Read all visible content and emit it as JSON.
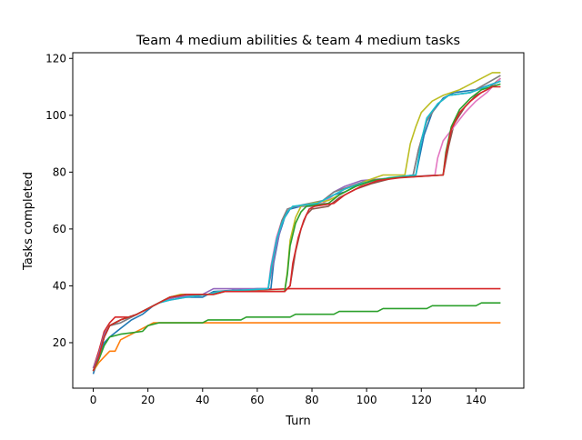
{
  "chart_data": {
    "type": "line",
    "title": "Team 4 medium abilities & team 4 medium tasks",
    "xlabel": "Turn",
    "ylabel": "Tasks completed",
    "xlim": [
      -7.5,
      157.5
    ],
    "ylim": [
      4,
      122
    ],
    "xticks": [
      0,
      20,
      40,
      60,
      80,
      100,
      120,
      140
    ],
    "yticks": [
      20,
      40,
      60,
      80,
      100,
      120
    ],
    "grid": false,
    "legend": "none",
    "series": [
      {
        "color": "#1f77b4",
        "points": [
          [
            0,
            9
          ],
          [
            2,
            15
          ],
          [
            4,
            20
          ],
          [
            6,
            22
          ],
          [
            10,
            25
          ],
          [
            14,
            28
          ],
          [
            18,
            30
          ],
          [
            22,
            33
          ],
          [
            26,
            35
          ],
          [
            30,
            36
          ],
          [
            40,
            36
          ],
          [
            44,
            38
          ],
          [
            60,
            39
          ],
          [
            65,
            39
          ],
          [
            66,
            48
          ],
          [
            68,
            58
          ],
          [
            70,
            64
          ],
          [
            72,
            67
          ],
          [
            76,
            68
          ],
          [
            84,
            69
          ],
          [
            88,
            72
          ],
          [
            92,
            73
          ],
          [
            96,
            75
          ],
          [
            102,
            77
          ],
          [
            110,
            78
          ],
          [
            118,
            79
          ],
          [
            121,
            93
          ],
          [
            124,
            101
          ],
          [
            128,
            106
          ],
          [
            132,
            108
          ],
          [
            140,
            109
          ],
          [
            149,
            112
          ]
        ]
      },
      {
        "color": "#ff7f0e",
        "points": [
          [
            0,
            10
          ],
          [
            2,
            13
          ],
          [
            4,
            15
          ],
          [
            6,
            17
          ],
          [
            8,
            17
          ],
          [
            10,
            21
          ],
          [
            14,
            23
          ],
          [
            18,
            25
          ],
          [
            22,
            27
          ],
          [
            30,
            27
          ],
          [
            149,
            27
          ]
        ]
      },
      {
        "color": "#2ca02c",
        "points": [
          [
            0,
            10
          ],
          [
            2,
            14
          ],
          [
            4,
            19
          ],
          [
            6,
            22
          ],
          [
            10,
            23
          ],
          [
            18,
            24
          ],
          [
            20,
            26
          ],
          [
            24,
            27
          ],
          [
            40,
            27
          ],
          [
            42,
            28
          ],
          [
            54,
            28
          ],
          [
            56,
            29
          ],
          [
            72,
            29
          ],
          [
            74,
            30
          ],
          [
            88,
            30
          ],
          [
            90,
            31
          ],
          [
            104,
            31
          ],
          [
            106,
            32
          ],
          [
            122,
            32
          ],
          [
            124,
            33
          ],
          [
            140,
            33
          ],
          [
            142,
            34
          ],
          [
            149,
            34
          ]
        ]
      },
      {
        "color": "#d62728",
        "points": [
          [
            0,
            11
          ],
          [
            2,
            17
          ],
          [
            4,
            24
          ],
          [
            6,
            27
          ],
          [
            8,
            29
          ],
          [
            14,
            29
          ],
          [
            18,
            31
          ],
          [
            22,
            33
          ],
          [
            26,
            35
          ],
          [
            30,
            36
          ],
          [
            42,
            37
          ],
          [
            46,
            38
          ],
          [
            72,
            39
          ],
          [
            149,
            39
          ]
        ]
      },
      {
        "color": "#9467bd",
        "points": [
          [
            0,
            11
          ],
          [
            2,
            16
          ],
          [
            4,
            23
          ],
          [
            6,
            26
          ],
          [
            10,
            27
          ],
          [
            14,
            29
          ],
          [
            18,
            31
          ],
          [
            22,
            33
          ],
          [
            26,
            35
          ],
          [
            30,
            36
          ],
          [
            40,
            37
          ],
          [
            44,
            39
          ],
          [
            64,
            39
          ],
          [
            65,
            44
          ],
          [
            67,
            54
          ],
          [
            69,
            62
          ],
          [
            71,
            66
          ],
          [
            73,
            68
          ],
          [
            80,
            68
          ],
          [
            84,
            70
          ],
          [
            88,
            73
          ],
          [
            92,
            75
          ],
          [
            98,
            77
          ],
          [
            110,
            78
          ],
          [
            117,
            79
          ],
          [
            119,
            88
          ],
          [
            122,
            98
          ],
          [
            126,
            104
          ],
          [
            130,
            107
          ],
          [
            138,
            108
          ],
          [
            149,
            112
          ]
        ]
      },
      {
        "color": "#8c564b",
        "points": [
          [
            0,
            10
          ],
          [
            2,
            15
          ],
          [
            4,
            22
          ],
          [
            6,
            26
          ],
          [
            10,
            28
          ],
          [
            16,
            30
          ],
          [
            20,
            32
          ],
          [
            24,
            34
          ],
          [
            28,
            36
          ],
          [
            34,
            37
          ],
          [
            42,
            37
          ],
          [
            46,
            38
          ],
          [
            70,
            38
          ],
          [
            72,
            40
          ],
          [
            74,
            52
          ],
          [
            76,
            60
          ],
          [
            78,
            65
          ],
          [
            80,
            67
          ],
          [
            86,
            68
          ],
          [
            90,
            71
          ],
          [
            96,
            74
          ],
          [
            102,
            76
          ],
          [
            110,
            78
          ],
          [
            128,
            79
          ],
          [
            130,
            89
          ],
          [
            132,
            97
          ],
          [
            136,
            103
          ],
          [
            140,
            107
          ],
          [
            144,
            109
          ],
          [
            149,
            113
          ]
        ]
      },
      {
        "color": "#e377c2",
        "points": [
          [
            0,
            10
          ],
          [
            2,
            15
          ],
          [
            4,
            22
          ],
          [
            6,
            26
          ],
          [
            10,
            28
          ],
          [
            16,
            30
          ],
          [
            20,
            32
          ],
          [
            24,
            34
          ],
          [
            28,
            35
          ],
          [
            34,
            36
          ],
          [
            42,
            37
          ],
          [
            46,
            38
          ],
          [
            64,
            39
          ],
          [
            65,
            47
          ],
          [
            67,
            57
          ],
          [
            69,
            63
          ],
          [
            71,
            67
          ],
          [
            74,
            68
          ],
          [
            84,
            69
          ],
          [
            88,
            72
          ],
          [
            94,
            75
          ],
          [
            100,
            77
          ],
          [
            110,
            78
          ],
          [
            125,
            79
          ],
          [
            126,
            85
          ],
          [
            128,
            91
          ],
          [
            132,
            96
          ],
          [
            136,
            101
          ],
          [
            140,
            105
          ],
          [
            144,
            108
          ],
          [
            149,
            113
          ]
        ]
      },
      {
        "color": "#7f7f7f",
        "points": [
          [
            0,
            10
          ],
          [
            2,
            15
          ],
          [
            4,
            22
          ],
          [
            6,
            26
          ],
          [
            10,
            27
          ],
          [
            16,
            30
          ],
          [
            20,
            32
          ],
          [
            24,
            34
          ],
          [
            28,
            36
          ],
          [
            34,
            37
          ],
          [
            44,
            37
          ],
          [
            48,
            38
          ],
          [
            64,
            39
          ],
          [
            65,
            45
          ],
          [
            67,
            56
          ],
          [
            69,
            63
          ],
          [
            71,
            67
          ],
          [
            74,
            68
          ],
          [
            84,
            70
          ],
          [
            88,
            73
          ],
          [
            94,
            75
          ],
          [
            100,
            77
          ],
          [
            110,
            78
          ],
          [
            117,
            79
          ],
          [
            119,
            88
          ],
          [
            122,
            98
          ],
          [
            126,
            104
          ],
          [
            130,
            107
          ],
          [
            138,
            108
          ],
          [
            149,
            114
          ]
        ]
      },
      {
        "color": "#bcbd22",
        "points": [
          [
            0,
            10
          ],
          [
            2,
            15
          ],
          [
            4,
            22
          ],
          [
            6,
            26
          ],
          [
            10,
            28
          ],
          [
            16,
            30
          ],
          [
            20,
            32
          ],
          [
            24,
            34
          ],
          [
            28,
            36
          ],
          [
            32,
            37
          ],
          [
            42,
            37
          ],
          [
            46,
            38
          ],
          [
            70,
            38
          ],
          [
            71,
            45
          ],
          [
            72,
            56
          ],
          [
            74,
            64
          ],
          [
            76,
            68
          ],
          [
            80,
            69
          ],
          [
            86,
            70
          ],
          [
            90,
            72
          ],
          [
            96,
            75
          ],
          [
            100,
            77
          ],
          [
            106,
            79
          ],
          [
            114,
            79
          ],
          [
            116,
            90
          ],
          [
            118,
            96
          ],
          [
            120,
            101
          ],
          [
            124,
            105
          ],
          [
            128,
            107
          ],
          [
            134,
            109
          ],
          [
            140,
            112
          ],
          [
            146,
            115
          ],
          [
            149,
            115
          ]
        ]
      },
      {
        "color": "#17becf",
        "points": [
          [
            0,
            10
          ],
          [
            2,
            15
          ],
          [
            4,
            22
          ],
          [
            6,
            26
          ],
          [
            10,
            28
          ],
          [
            16,
            30
          ],
          [
            20,
            32
          ],
          [
            24,
            34
          ],
          [
            28,
            35
          ],
          [
            34,
            36
          ],
          [
            42,
            37
          ],
          [
            46,
            38
          ],
          [
            64,
            39
          ],
          [
            65,
            46
          ],
          [
            67,
            56
          ],
          [
            69,
            62
          ],
          [
            71,
            66
          ],
          [
            73,
            68
          ],
          [
            82,
            69
          ],
          [
            86,
            71
          ],
          [
            92,
            74
          ],
          [
            98,
            76
          ],
          [
            108,
            78
          ],
          [
            118,
            79
          ],
          [
            120,
            91
          ],
          [
            122,
            99
          ],
          [
            126,
            104
          ],
          [
            130,
            107
          ],
          [
            138,
            108
          ],
          [
            149,
            112
          ]
        ]
      },
      {
        "color": "#2ca02c",
        "points": [
          [
            0,
            10
          ],
          [
            2,
            15
          ],
          [
            4,
            22
          ],
          [
            6,
            26
          ],
          [
            10,
            28
          ],
          [
            16,
            30
          ],
          [
            20,
            32
          ],
          [
            24,
            34
          ],
          [
            28,
            36
          ],
          [
            34,
            37
          ],
          [
            44,
            37
          ],
          [
            48,
            38
          ],
          [
            70,
            38
          ],
          [
            71,
            44
          ],
          [
            72,
            54
          ],
          [
            74,
            62
          ],
          [
            76,
            66
          ],
          [
            78,
            68
          ],
          [
            86,
            69
          ],
          [
            90,
            72
          ],
          [
            96,
            75
          ],
          [
            102,
            77
          ],
          [
            110,
            78
          ],
          [
            128,
            79
          ],
          [
            129,
            87
          ],
          [
            131,
            96
          ],
          [
            134,
            102
          ],
          [
            138,
            106
          ],
          [
            142,
            109
          ],
          [
            149,
            111
          ]
        ]
      },
      {
        "color": "#d62728",
        "points": [
          [
            0,
            10
          ],
          [
            2,
            15
          ],
          [
            4,
            22
          ],
          [
            6,
            26
          ],
          [
            10,
            28
          ],
          [
            16,
            30
          ],
          [
            20,
            32
          ],
          [
            24,
            34
          ],
          [
            28,
            36
          ],
          [
            34,
            37
          ],
          [
            44,
            37
          ],
          [
            48,
            38
          ],
          [
            70,
            38
          ],
          [
            72,
            40
          ],
          [
            73,
            48
          ],
          [
            75,
            57
          ],
          [
            77,
            63
          ],
          [
            79,
            67
          ],
          [
            81,
            68
          ],
          [
            88,
            69
          ],
          [
            92,
            72
          ],
          [
            98,
            75
          ],
          [
            104,
            77
          ],
          [
            112,
            78
          ],
          [
            128,
            79
          ],
          [
            129,
            86
          ],
          [
            131,
            95
          ],
          [
            134,
            101
          ],
          [
            138,
            105
          ],
          [
            142,
            108
          ],
          [
            146,
            110
          ],
          [
            149,
            110
          ]
        ]
      }
    ]
  }
}
